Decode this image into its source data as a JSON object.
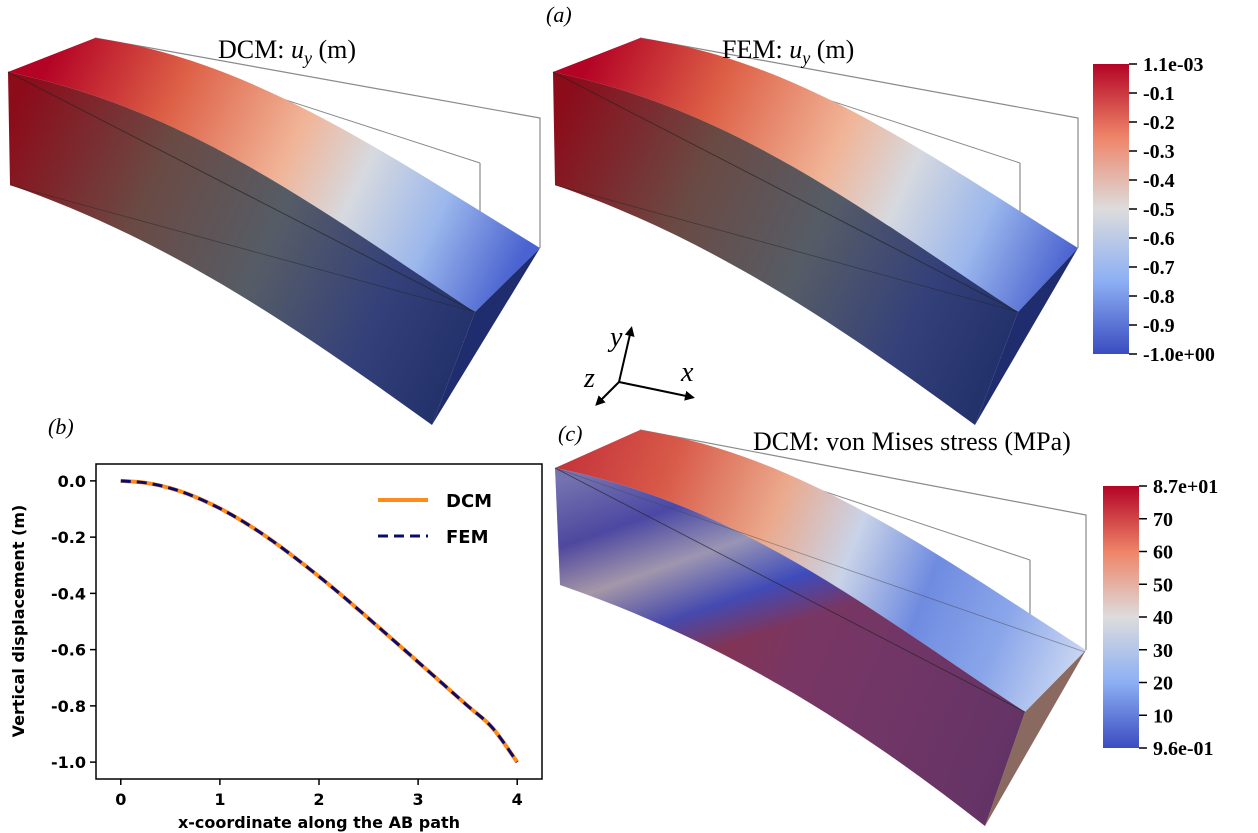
{
  "labels": {
    "a": "(a)",
    "b": "(b)",
    "c": "(c)"
  },
  "axes_glyph": {
    "x": "x",
    "y": "y",
    "z": "z"
  },
  "colors": {
    "colormap_low": "#3b4cc0",
    "colormap_mid": "#dddcdc",
    "colormap_high": "#b40426",
    "dcm_line": "#ff8c1a",
    "fem_line": "#0b0b6e"
  },
  "panel_a": {
    "left_title_prefix": "DCM: ",
    "right_title_prefix": "FEM: ",
    "title_var": "u",
    "title_sub": "y",
    "title_unit": " (m)",
    "colorbar_labels": [
      "1.1e-03",
      "-0.1",
      "-0.2",
      "-0.3",
      "-0.4",
      "-0.5",
      "-0.6",
      "-0.7",
      "-0.8",
      "-0.9",
      "-1.0e+00"
    ]
  },
  "panel_c": {
    "title": "DCM: von Mises stress (MPa)",
    "colorbar_labels": [
      "8.7e+01",
      "70",
      "60",
      "50",
      "40",
      "30",
      "20",
      "10",
      "9.6e-01"
    ]
  },
  "chart_data": {
    "type": "line",
    "xlabel": "x-coordinate along the AB path",
    "ylabel": "Vertical displacement (m)",
    "xlim": [
      -0.25,
      4.25
    ],
    "ylim": [
      -1.06,
      0.06
    ],
    "xticks": [
      "0",
      "1",
      "2",
      "3",
      "4"
    ],
    "yticks": [
      "0.0",
      "-0.2",
      "-0.4",
      "-0.6",
      "-0.8",
      "-1.0"
    ],
    "legend_position": "top-right",
    "grid": false,
    "x": [
      0,
      0.25,
      0.5,
      0.75,
      1.0,
      1.25,
      1.5,
      1.75,
      2.0,
      2.25,
      2.5,
      2.75,
      3.0,
      3.25,
      3.5,
      3.75,
      4.0
    ],
    "series": [
      {
        "name": "DCM",
        "style": "solid",
        "values": [
          0,
          -0.007,
          -0.026,
          -0.057,
          -0.098,
          -0.148,
          -0.206,
          -0.271,
          -0.34,
          -0.413,
          -0.489,
          -0.566,
          -0.644,
          -0.722,
          -0.8,
          -0.878,
          -1.0
        ]
      },
      {
        "name": "FEM",
        "style": "dashed",
        "values": [
          0,
          -0.007,
          -0.026,
          -0.057,
          -0.098,
          -0.148,
          -0.206,
          -0.271,
          -0.34,
          -0.413,
          -0.489,
          -0.566,
          -0.644,
          -0.722,
          -0.8,
          -0.878,
          -1.0
        ]
      }
    ]
  }
}
